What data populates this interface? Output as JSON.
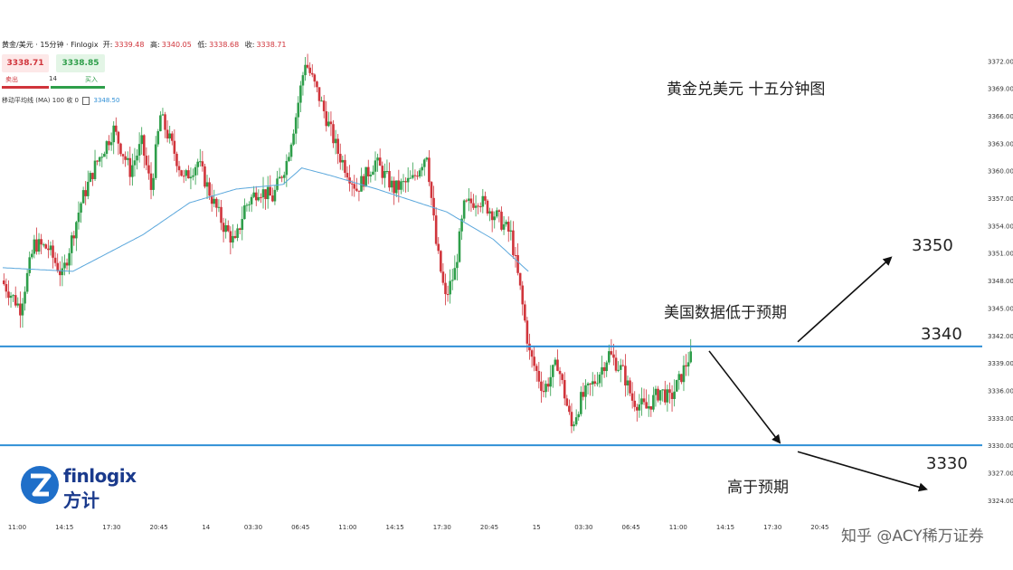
{
  "header": {
    "symbol": "黄金/美元 · 15分钟 · Finlogix",
    "open_label": "开:",
    "open_value": "3339.48",
    "high_label": "高:",
    "high_value": "3340.05",
    "low_label": "低:",
    "low_value": "3338.68",
    "close_label": "收:",
    "close_value": "3338.71"
  },
  "trade_panel": {
    "sell_price": "3338.71",
    "buy_price": "3338.85",
    "sell_label": "卖出",
    "buy_label": "买入",
    "quantity": "14"
  },
  "ma_legend": {
    "label": "移动平均线 (MA) 100 收 0",
    "value": "3348.50"
  },
  "logo": {
    "en": "finlogix",
    "cn": "方计"
  },
  "annotations": {
    "title": "黄金兑美元 十五分钟图",
    "us_data_lower": "美国数据低于预期",
    "higher_than_expected": "高于预期",
    "level_3350": "3350",
    "level_3340": "3340",
    "level_3330": "3330"
  },
  "watermark": "知乎 @ACY稀万证券",
  "colors": {
    "up": "#2e9e4a",
    "down": "#d0343b",
    "ma": "#5aa7dc",
    "hline": "#2f8fd6"
  },
  "chart_data": {
    "type": "candlestick",
    "instrument": "黄金/美元",
    "timeframe": "15分钟",
    "ylim": [
      3322.5,
      3374.5
    ],
    "y_ticks": [
      "3372.00",
      "3369.00",
      "3366.00",
      "3363.00",
      "3360.00",
      "3357.00",
      "3354.00",
      "3351.00",
      "3348.00",
      "3345.00",
      "3342.00",
      "3339.00",
      "3336.00",
      "3333.00",
      "3330.00",
      "3327.00",
      "3324.00"
    ],
    "x_ticks": [
      "11:00",
      "14:15",
      "17:30",
      "20:45",
      "14",
      "03:30",
      "06:45",
      "11:00",
      "14:15",
      "17:30",
      "20:45",
      "15",
      "03:30",
      "06:45",
      "11:00",
      "14:15",
      "17:30",
      "20:45"
    ],
    "x_tick_count": 18,
    "horizontal_levels": [
      3340.8,
      3330.0
    ],
    "close_path": [
      [
        0,
        3348
      ],
      [
        8,
        3345
      ],
      [
        14,
        3352
      ],
      [
        20,
        3351.5
      ],
      [
        26,
        3348.5
      ],
      [
        34,
        3356.5
      ],
      [
        40,
        3360.5
      ],
      [
        48,
        3364.5
      ],
      [
        55,
        3360
      ],
      [
        60,
        3363
      ],
      [
        64,
        3358
      ],
      [
        68,
        3366
      ],
      [
        74,
        3362
      ],
      [
        78,
        3359
      ],
      [
        84,
        3361
      ],
      [
        90,
        3357
      ],
      [
        95,
        3354
      ],
      [
        100,
        3352
      ],
      [
        104,
        3356
      ],
      [
        110,
        3358
      ],
      [
        116,
        3357
      ],
      [
        122,
        3361
      ],
      [
        126,
        3366
      ],
      [
        130,
        3372
      ],
      [
        136,
        3368
      ],
      [
        144,
        3362
      ],
      [
        152,
        3358
      ],
      [
        160,
        3361
      ],
      [
        168,
        3358
      ],
      [
        176,
        3359
      ],
      [
        182,
        3362
      ],
      [
        186,
        3352
      ],
      [
        190,
        3346
      ],
      [
        194,
        3349
      ],
      [
        198,
        3356
      ],
      [
        204,
        3357
      ],
      [
        212,
        3355
      ],
      [
        218,
        3353
      ],
      [
        222,
        3347
      ],
      [
        226,
        3340
      ],
      [
        232,
        3336
      ],
      [
        238,
        3339
      ],
      [
        244,
        3332
      ],
      [
        248,
        3335
      ],
      [
        254,
        3337
      ],
      [
        260,
        3340
      ],
      [
        266,
        3338
      ],
      [
        270,
        3335
      ],
      [
        276,
        3334
      ],
      [
        282,
        3336
      ],
      [
        286,
        3335
      ],
      [
        290,
        3337
      ],
      [
        294,
        3339.5
      ]
    ],
    "ma100_path": [
      [
        0,
        3349.4
      ],
      [
        30,
        3349
      ],
      [
        60,
        3353
      ],
      [
        80,
        3356.5
      ],
      [
        100,
        3358
      ],
      [
        120,
        3358.5
      ],
      [
        128,
        3360.3
      ],
      [
        140,
        3359.5
      ],
      [
        160,
        3358
      ],
      [
        190,
        3355.5
      ],
      [
        210,
        3352.5
      ],
      [
        225,
        3349
      ]
    ],
    "projection_up": {
      "from": 3341.3,
      "to": 3350.5
    },
    "projection_mid": {
      "from": 3340.3,
      "to": 3330.3
    },
    "projection_down": {
      "from": 3329.3,
      "to": 3325.2
    }
  }
}
